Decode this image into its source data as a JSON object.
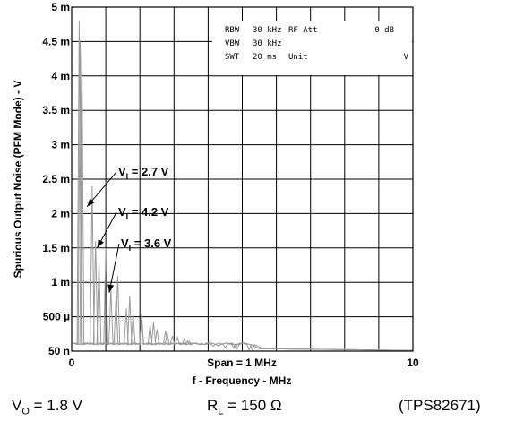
{
  "chart_data": {
    "type": "line",
    "x_range": [
      0,
      10
    ],
    "x_tick_labels": [
      "0",
      "10"
    ],
    "x_center_label": "Span = 1 MHz",
    "xlabel": "f - Frequency - MHz",
    "ylabel": "Spurious Output Noise (PFM Mode) - V",
    "y_tick_labels": [
      "5 m",
      "4.5 m",
      "4 m",
      "3.5 m",
      "3 m",
      "2.5 m",
      "2 m",
      "1.5 m",
      "1 m",
      "500 µ",
      "50 n"
    ],
    "grid": true,
    "instrument": {
      "rows": [
        [
          "RBW",
          "30 kHz",
          "RF Att",
          "0 dB"
        ],
        [
          "VBW",
          "30 kHz",
          "",
          ""
        ],
        [
          "SWT",
          "20 ms",
          "Unit",
          "V"
        ]
      ]
    },
    "annotations": [
      {
        "main": "V",
        "sub": "I",
        "rest": " = 2.7 V",
        "target_x": 0.45,
        "target_y": 0.0021
      },
      {
        "main": "V",
        "sub": "I",
        "rest": " = 4.2 V",
        "target_x": 0.75,
        "target_y": 0.0015
      },
      {
        "main": "V",
        "sub": "I",
        "rest": " = 3.6 V",
        "target_x": 1.1,
        "target_y": 0.00085
      }
    ],
    "series": [
      {
        "x": [
          0.22,
          0.6,
          1.0,
          1.35,
          1.7,
          2.05,
          2.4,
          2.75,
          3.1,
          3.45,
          3.8,
          4.15,
          4.5,
          4.85,
          5.2
        ],
        "y": [
          0.0048,
          0.0024,
          0.0015,
          0.0011,
          0.0008,
          0.00055,
          0.00042,
          0.0003,
          0.0002,
          0.00014,
          0.0001,
          7e-05,
          5e-05,
          3e-05,
          2e-05
        ]
      },
      {
        "x": [
          0.25,
          0.7,
          1.15,
          1.6,
          2.05,
          2.5,
          2.95,
          3.4,
          3.85,
          4.3,
          4.75,
          5.2
        ],
        "y": [
          0.0045,
          0.0016,
          0.0009,
          0.00062,
          0.00045,
          0.00032,
          0.00022,
          0.00015,
          0.0001,
          7e-05,
          4e-05,
          2e-05
        ]
      },
      {
        "x": [
          0.3,
          0.8,
          1.3,
          1.8,
          2.3,
          2.8,
          3.3,
          3.8,
          4.3,
          4.8,
          5.3
        ],
        "y": [
          0.0044,
          0.0013,
          0.0008,
          0.00055,
          0.00038,
          0.00026,
          0.00018,
          0.00012,
          8e-05,
          5e-05,
          2e-05
        ]
      }
    ],
    "colors": {
      "trace": "#9a9a9a",
      "grid": "#000000"
    }
  },
  "footer": {
    "vo_main": "V",
    "vo_sub": "O",
    "vo_rest": " = 1.8 V",
    "rl_main": "R",
    "rl_sub": "L",
    "rl_rest": " = 150 Ω",
    "part": "(TPS82671)"
  }
}
